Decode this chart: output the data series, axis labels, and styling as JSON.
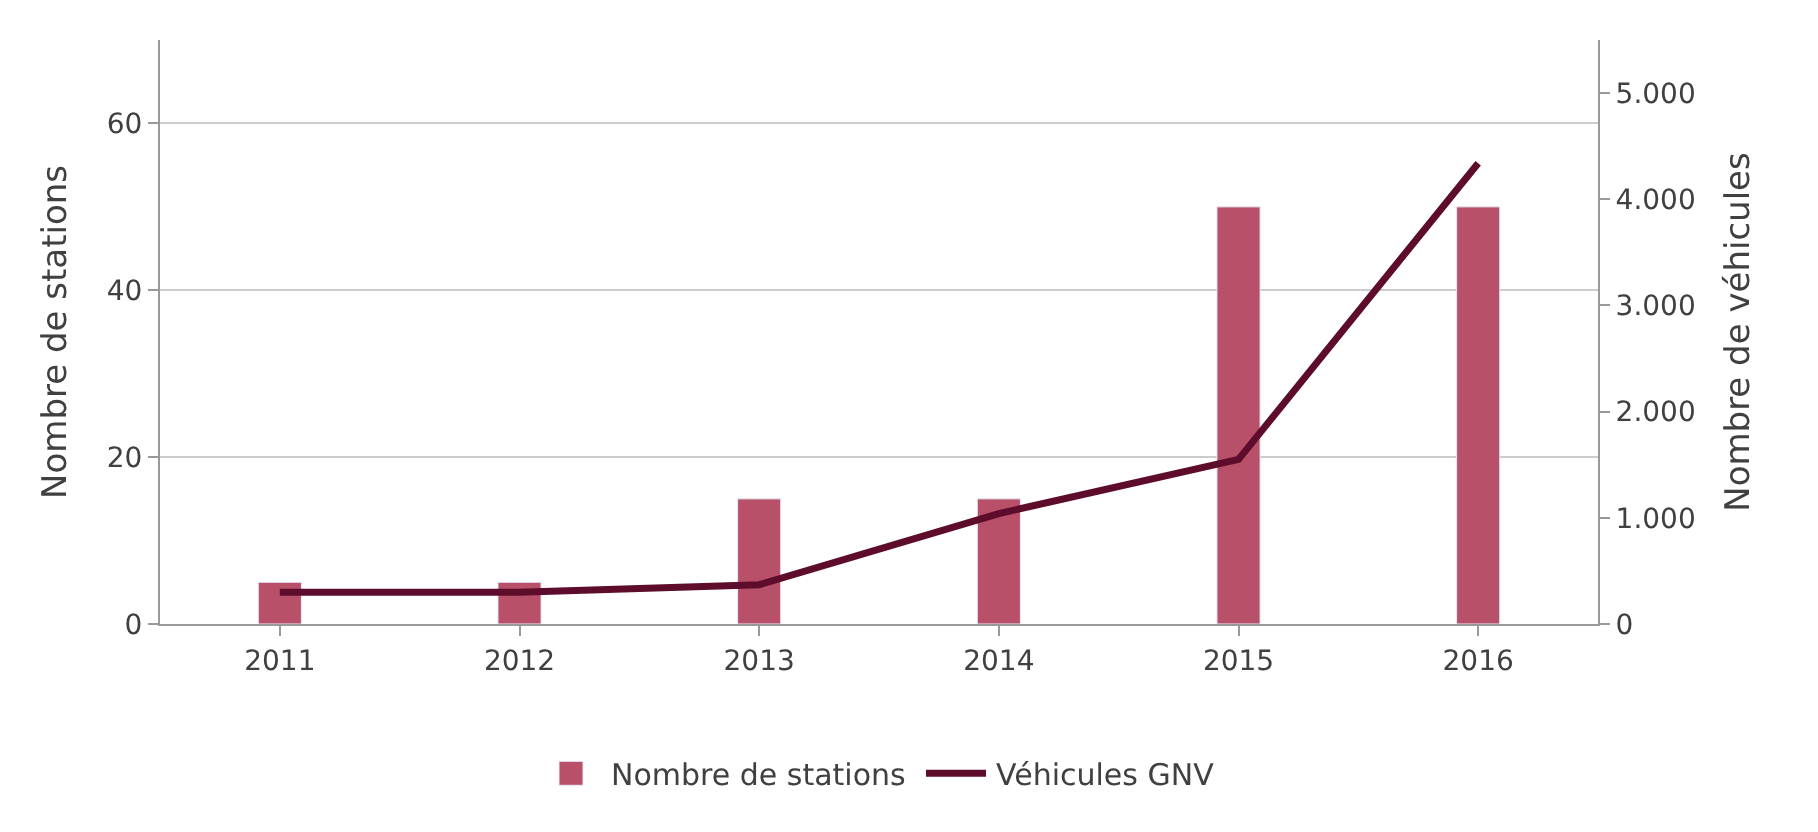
{
  "chart_data": {
    "type": "bar",
    "categories": [
      "2011",
      "2012",
      "2013",
      "2014",
      "2015",
      "2016"
    ],
    "series": [
      {
        "name": "Nombre de stations",
        "color": "#b9506a",
        "values": [
          5,
          5,
          15,
          15,
          50,
          50
        ]
      },
      {
        "name": "Véhicules GNV",
        "type": "line",
        "axis": "y2",
        "color": "#5e0c2c",
        "values": [
          300,
          300,
          370,
          1040,
          1550,
          4340
        ]
      }
    ],
    "ylabel": "Nombre de stations",
    "y2label": "Nombre de véhicules",
    "ylim": [
      0,
      70
    ],
    "yticks": [
      0,
      20,
      40,
      60
    ],
    "y2lim": [
      0,
      5500
    ],
    "y2ticks": [
      {
        "value": 0,
        "label": "0"
      },
      {
        "value": 1000,
        "label": "1.000"
      },
      {
        "value": 2000,
        "label": "2.000"
      },
      {
        "value": 3000,
        "label": "3.000"
      },
      {
        "value": 4000,
        "label": "4.000"
      },
      {
        "value": 5000,
        "label": "5.000"
      }
    ],
    "grid": "y",
    "legend": "bottom",
    "marker": "none",
    "line_style": "solid"
  }
}
